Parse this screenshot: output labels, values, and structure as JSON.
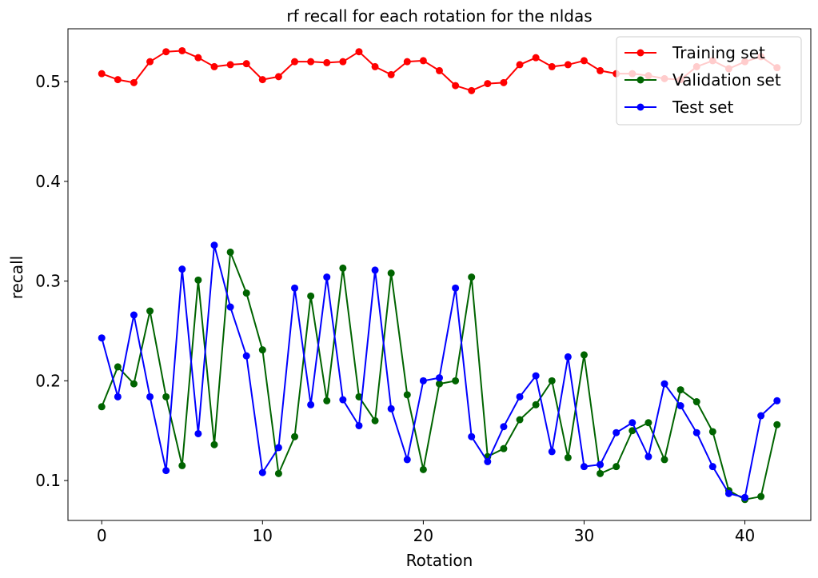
{
  "chart_data": {
    "type": "line",
    "title": "rf recall for each rotation for the nldas",
    "xlabel": "Rotation",
    "ylabel": "recall",
    "xlim": [
      -2.1,
      44.1
    ],
    "ylim": [
      0.06,
      0.553
    ],
    "xticks": [
      0,
      10,
      20,
      30,
      40
    ],
    "xtick_labels": [
      "0",
      "10",
      "20",
      "30",
      "40"
    ],
    "yticks": [
      0.1,
      0.2,
      0.3,
      0.4,
      0.5
    ],
    "ytick_labels": [
      "0.1",
      "0.2",
      "0.3",
      "0.4",
      "0.5"
    ],
    "grid": false,
    "legend_position": "top-right",
    "x": [
      0,
      1,
      2,
      3,
      4,
      5,
      6,
      7,
      8,
      9,
      10,
      11,
      12,
      13,
      14,
      15,
      16,
      17,
      18,
      19,
      20,
      21,
      22,
      23,
      24,
      25,
      26,
      27,
      28,
      29,
      30,
      31,
      32,
      33,
      34,
      35,
      36,
      37,
      38,
      39,
      40,
      41,
      42
    ],
    "series": [
      {
        "name": "Training set",
        "color": "#ff0000",
        "values": [
          0.508,
          0.502,
          0.499,
          0.52,
          0.53,
          0.531,
          0.524,
          0.515,
          0.517,
          0.518,
          0.502,
          0.505,
          0.52,
          0.52,
          0.519,
          0.52,
          0.53,
          0.515,
          0.507,
          0.52,
          0.521,
          0.511,
          0.496,
          0.491,
          0.498,
          0.499,
          0.517,
          0.524,
          0.515,
          0.517,
          0.521,
          0.511,
          0.508,
          0.508,
          0.506,
          0.503,
          0.502,
          0.515,
          0.521,
          0.513,
          0.52,
          0.525,
          0.514
        ]
      },
      {
        "name": "Validation set",
        "color": "#006400",
        "values": [
          0.174,
          0.214,
          0.197,
          0.27,
          0.184,
          0.115,
          0.301,
          0.136,
          0.329,
          0.288,
          0.231,
          0.107,
          0.144,
          0.285,
          0.18,
          0.313,
          0.184,
          0.16,
          0.308,
          0.186,
          0.111,
          0.197,
          0.2,
          0.304,
          0.124,
          0.132,
          0.161,
          0.176,
          0.2,
          0.123,
          0.226,
          0.107,
          0.114,
          0.15,
          0.158,
          0.121,
          0.191,
          0.179,
          0.149,
          0.09,
          0.081,
          0.084,
          0.156
        ]
      },
      {
        "name": "Test set",
        "color": "#0000ff",
        "values": [
          0.243,
          0.184,
          0.266,
          0.184,
          0.11,
          0.312,
          0.147,
          0.336,
          0.274,
          0.225,
          0.108,
          0.133,
          0.293,
          0.176,
          0.304,
          0.181,
          0.155,
          0.311,
          0.172,
          0.121,
          0.2,
          0.203,
          0.293,
          0.144,
          0.119,
          0.154,
          0.184,
          0.205,
          0.129,
          0.224,
          0.114,
          0.116,
          0.148,
          0.158,
          0.124,
          0.197,
          0.175,
          0.148,
          0.114,
          0.087,
          0.083,
          0.165,
          0.18
        ]
      }
    ]
  }
}
